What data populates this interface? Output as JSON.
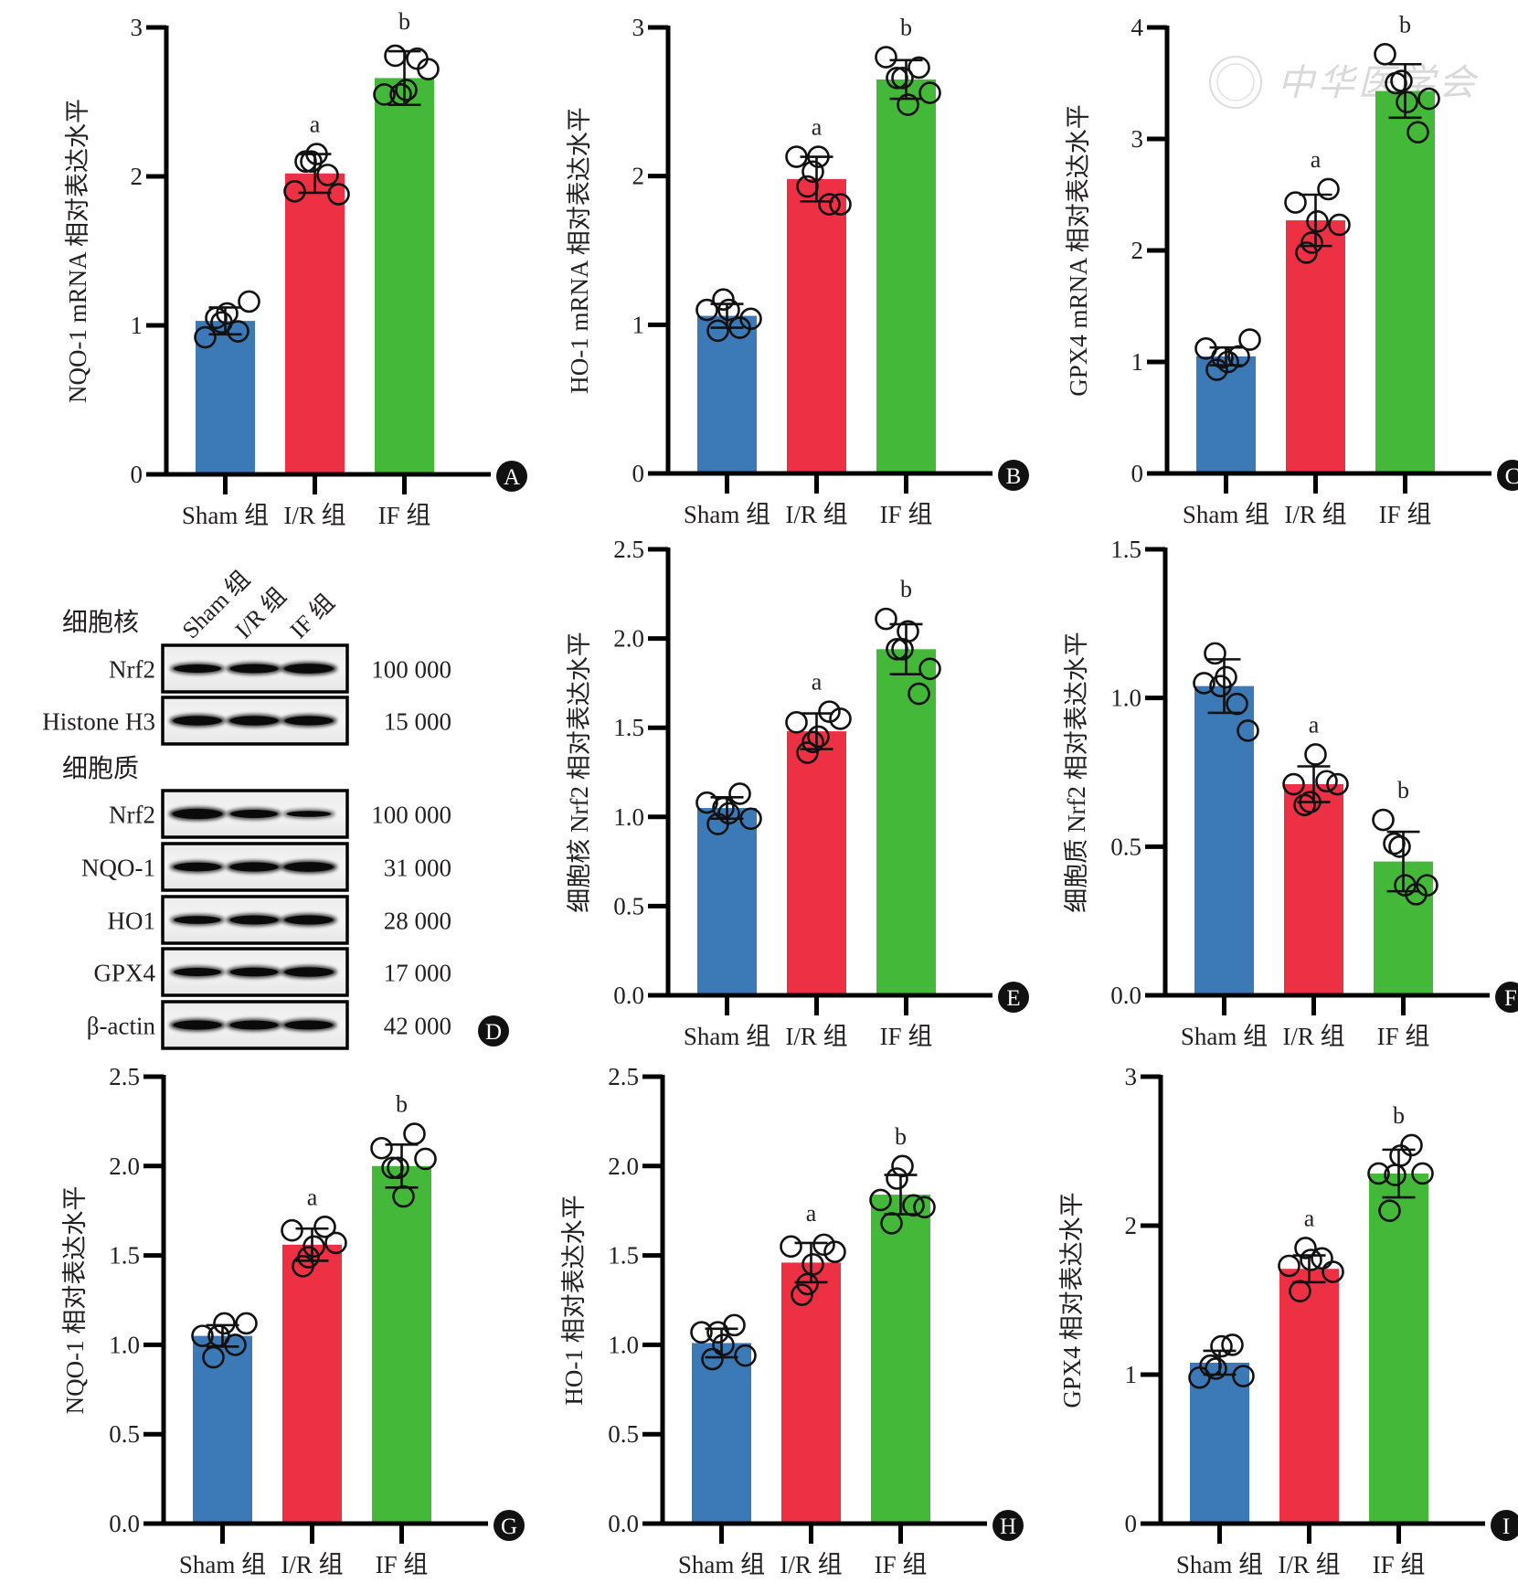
{
  "figure": {
    "watermark": "中华医学会",
    "group_labels": [
      "Sham 组",
      "I/R 组",
      "IF 组"
    ],
    "bar_colors": [
      "#3b79b7",
      "#ee3044",
      "#44b838"
    ],
    "annotation_letters": [
      "",
      "a",
      "b"
    ]
  },
  "chart_data": [
    {
      "panel": "A",
      "type": "bar",
      "ylabel": "NQO-1 mRNA 相对表达水平",
      "categories": [
        "Sham 组",
        "I/R 组",
        "IF 组"
      ],
      "values": [
        1.03,
        2.02,
        2.66
      ],
      "error_sd": [
        0.09,
        0.13,
        0.18
      ],
      "points": [
        [
          0.92,
          1.05,
          1.08,
          0.96,
          1.16,
          1.02
        ],
        [
          1.9,
          2.1,
          2.15,
          2.01,
          1.88,
          2.1
        ],
        [
          2.55,
          2.81,
          2.58,
          2.79,
          2.72,
          2.55
        ]
      ],
      "significance": [
        "",
        "a",
        "b"
      ],
      "yticks": [
        "0",
        "1",
        "2",
        "3"
      ],
      "ylim": [
        0,
        3
      ]
    },
    {
      "panel": "B",
      "type": "bar",
      "ylabel": "HO-1 mRNA 相对表达水平",
      "categories": [
        "Sham 组",
        "I/R 组",
        "IF 组"
      ],
      "values": [
        1.06,
        1.98,
        2.65
      ],
      "error_sd": [
        0.08,
        0.15,
        0.13
      ],
      "points": [
        [
          1.1,
          0.96,
          1.1,
          0.98,
          1.04,
          1.17
        ],
        [
          2.13,
          1.93,
          2.13,
          1.81,
          1.81,
          2.03
        ],
        [
          2.8,
          2.66,
          2.48,
          2.73,
          2.56,
          2.66
        ]
      ],
      "significance": [
        "",
        "a",
        "b"
      ],
      "yticks": [
        "0",
        "1",
        "2",
        "3"
      ],
      "ylim": [
        0,
        3
      ]
    },
    {
      "panel": "C",
      "type": "bar",
      "ylabel": "GPX4 mRNA 相对表达水平",
      "categories": [
        "Sham 组",
        "I/R 组",
        "IF 组"
      ],
      "values": [
        1.05,
        2.27,
        3.43
      ],
      "error_sd": [
        0.08,
        0.23,
        0.24
      ],
      "points": [
        [
          1.12,
          0.93,
          1.0,
          1.05,
          1.2,
          1.04
        ],
        [
          2.43,
          1.98,
          2.26,
          2.55,
          2.23,
          2.07
        ],
        [
          3.76,
          3.5,
          3.33,
          3.06,
          3.36,
          3.52
        ]
      ],
      "significance": [
        "",
        "a",
        "b"
      ],
      "yticks": [
        "0",
        "1",
        "2",
        "3",
        "4"
      ],
      "ylim": [
        0,
        4
      ]
    },
    {
      "panel": "E",
      "type": "bar",
      "ylabel": "细胞核 Nrf2 相对表达水平",
      "categories": [
        "Sham 组",
        "I/R 组",
        "IF 组"
      ],
      "values": [
        1.05,
        1.48,
        1.94
      ],
      "error_sd": [
        0.06,
        0.1,
        0.14
      ],
      "points": [
        [
          1.08,
          0.96,
          1.02,
          1.13,
          0.99,
          1.05
        ],
        [
          1.53,
          1.36,
          1.45,
          1.59,
          1.55,
          1.42
        ],
        [
          2.11,
          1.94,
          2.04,
          1.69,
          1.83,
          1.94
        ]
      ],
      "significance": [
        "",
        "a",
        "b"
      ],
      "yticks": [
        "0.0",
        "0.5",
        "1.0",
        "1.5",
        "2.0",
        "2.5"
      ],
      "ylim": [
        0,
        2.5
      ]
    },
    {
      "panel": "F",
      "type": "bar",
      "ylabel": "细胞质 Nrf2 相对表达水平",
      "categories": [
        "Sham 组",
        "I/R 组",
        "IF 组"
      ],
      "values": [
        1.04,
        0.71,
        0.45
      ],
      "error_sd": [
        0.09,
        0.06,
        0.1
      ],
      "points": [
        [
          1.05,
          1.15,
          1.07,
          0.98,
          0.89,
          1.04
        ],
        [
          0.71,
          0.64,
          0.81,
          0.72,
          0.71,
          0.65
        ],
        [
          0.59,
          0.51,
          0.37,
          0.34,
          0.37,
          0.5
        ]
      ],
      "significance": [
        "",
        "a",
        "b"
      ],
      "yticks": [
        "0.0",
        "0.5",
        "1.0",
        "1.5"
      ],
      "ylim": [
        0,
        1.5
      ]
    },
    {
      "panel": "G",
      "type": "bar",
      "ylabel": "NQO-1 相对表达水平",
      "categories": [
        "Sham 组",
        "I/R 组",
        "IF 组"
      ],
      "values": [
        1.05,
        1.56,
        2.0
      ],
      "error_sd": [
        0.06,
        0.09,
        0.12
      ],
      "points": [
        [
          1.05,
          0.93,
          1.12,
          1.0,
          1.12,
          1.05
        ],
        [
          1.64,
          1.44,
          1.55,
          1.66,
          1.57,
          1.49
        ],
        [
          2.1,
          1.99,
          1.83,
          2.18,
          2.04,
          1.99
        ]
      ],
      "significance": [
        "",
        "a",
        "b"
      ],
      "yticks": [
        "0.0",
        "0.5",
        "1.0",
        "1.5",
        "2.0",
        "2.5"
      ],
      "ylim": [
        0,
        2.5
      ]
    },
    {
      "panel": "H",
      "type": "bar",
      "ylabel": "HO-1 相对表达水平",
      "categories": [
        "Sham 组",
        "I/R 组",
        "IF 组"
      ],
      "values": [
        1.01,
        1.46,
        1.84
      ],
      "error_sd": [
        0.08,
        0.11,
        0.11
      ],
      "points": [
        [
          1.07,
          0.92,
          1.0,
          1.11,
          0.94,
          1.07
        ],
        [
          1.55,
          1.28,
          1.45,
          1.56,
          1.52,
          1.34
        ],
        [
          1.81,
          1.68,
          2.0,
          1.78,
          1.77,
          1.93
        ]
      ],
      "significance": [
        "",
        "a",
        "b"
      ],
      "yticks": [
        "0.0",
        "0.5",
        "1.0",
        "1.5",
        "2.0",
        "2.5"
      ],
      "ylim": [
        0,
        2.5
      ]
    },
    {
      "panel": "I",
      "type": "bar",
      "ylabel": "GPX4 相对表达水平",
      "categories": [
        "Sham 组",
        "I/R 组",
        "IF 组"
      ],
      "values": [
        1.08,
        1.71,
        2.35
      ],
      "error_sd": [
        0.08,
        0.09,
        0.16
      ],
      "points": [
        [
          0.98,
          1.06,
          1.19,
          1.2,
          0.99,
          1.04
        ],
        [
          1.73,
          1.56,
          1.77,
          1.78,
          1.69,
          1.85
        ],
        [
          2.35,
          2.1,
          2.47,
          2.54,
          2.35,
          2.34
        ]
      ],
      "significance": [
        "",
        "a",
        "b"
      ],
      "yticks": [
        "0",
        "1",
        "2",
        "3"
      ],
      "ylim": [
        0,
        3
      ]
    }
  ],
  "western_blot": {
    "panel": "D",
    "lane_labels": [
      "Sham 组",
      "I/R 组",
      "IF 组"
    ],
    "sections": [
      {
        "title": "细胞核",
        "rows": [
          {
            "protein": "Nrf2",
            "mw": "100 000",
            "band_intensity": [
              0.75,
              0.85,
              0.95
            ]
          },
          {
            "protein": "Histone H3",
            "mw": "15 000",
            "band_intensity": [
              0.9,
              0.9,
              0.88
            ]
          }
        ]
      },
      {
        "title": "细胞质",
        "rows": [
          {
            "protein": "Nrf2",
            "mw": "100 000",
            "band_intensity": [
              1.0,
              0.75,
              0.45
            ]
          },
          {
            "protein": "NQO-1",
            "mw": "31 000",
            "band_intensity": [
              0.8,
              0.88,
              0.95
            ]
          },
          {
            "protein": "HO1",
            "mw": "28 000",
            "band_intensity": [
              0.7,
              0.85,
              0.88
            ]
          },
          {
            "protein": "GPX4",
            "mw": "17 000",
            "band_intensity": [
              0.75,
              0.82,
              0.92
            ]
          },
          {
            "protein": "β-actin",
            "mw": "42 000",
            "band_intensity": [
              0.88,
              0.85,
              0.85
            ]
          }
        ]
      }
    ]
  }
}
